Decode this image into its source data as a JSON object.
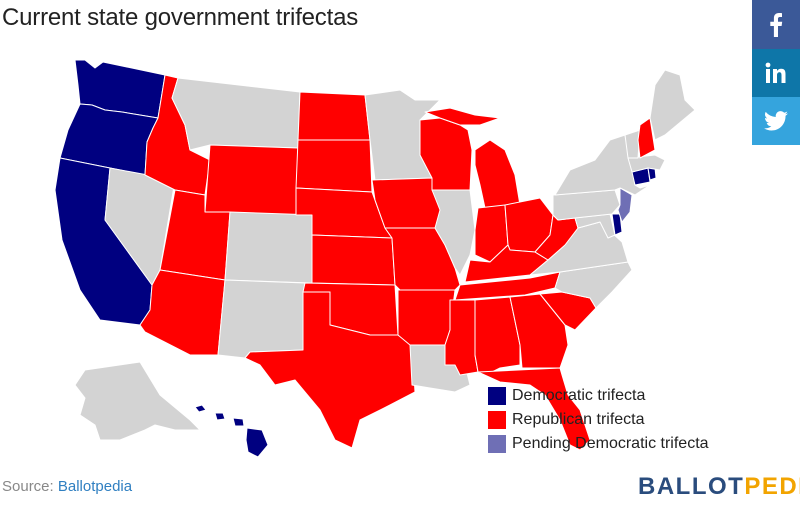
{
  "title": "Current state government trifectas",
  "share": {
    "facebook_icon": "facebook-icon",
    "linkedin_icon": "linkedin-icon",
    "twitter_icon": "twitter-icon",
    "colors": {
      "facebook": "#3b5998",
      "linkedin": "#0e76a8",
      "twitter": "#35a4dd"
    }
  },
  "colors": {
    "democratic": "#000080",
    "republican": "#ff0000",
    "pending_democratic": "#6f6fb5",
    "none": "#d3d3d3"
  },
  "legend": [
    {
      "label": "Democratic trifecta",
      "status": "democratic"
    },
    {
      "label": "Republican trifecta",
      "status": "republican"
    },
    {
      "label": "Pending Democratic trifecta",
      "status": "pending_democratic"
    }
  ],
  "states": {
    "WA": "democratic",
    "OR": "democratic",
    "CA": "democratic",
    "HI": "democratic",
    "CT": "democratic",
    "RI": "democratic",
    "DE": "democratic",
    "NJ": "pending_democratic",
    "ID": "republican",
    "UT": "republican",
    "AZ": "republican",
    "WY": "republican",
    "ND": "republican",
    "SD": "republican",
    "NE": "republican",
    "KS": "republican",
    "OK": "republican",
    "TX": "republican",
    "IA": "republican",
    "MO": "republican",
    "AR": "republican",
    "WI": "republican",
    "MI": "republican",
    "IN": "republican",
    "OH": "republican",
    "KY": "republican",
    "TN": "republican",
    "WV": "republican",
    "MS": "republican",
    "AL": "republican",
    "GA": "republican",
    "SC": "republican",
    "FL": "republican",
    "NH": "republican",
    "NV": "none",
    "MT": "none",
    "CO": "none",
    "NM": "none",
    "MN": "none",
    "IL": "none",
    "LA": "none",
    "PA": "none",
    "NY": "none",
    "VA": "none",
    "NC": "none",
    "MD": "none",
    "VT": "none",
    "ME": "none",
    "MA": "none",
    "AK": "none"
  },
  "source": {
    "prefix": "Source: ",
    "link": "Ballotpedia"
  },
  "brand": {
    "part1": "BALLOT",
    "part2": "PEDIA"
  }
}
